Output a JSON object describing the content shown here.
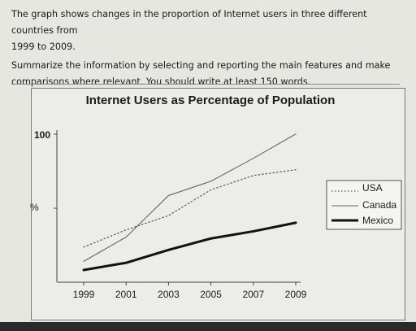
{
  "prompt": {
    "line1": "The graph shows changes in the proportion of Internet users in three different countries from",
    "line2": "1999 to 2009.",
    "line3": "Summarize the information by selecting and reporting the main features and make",
    "line4": "comparisons where relevant. You should write at least 150 words."
  },
  "chart_data": {
    "type": "line",
    "title": "Internet Users as Percentage of Population",
    "ylabel": "%",
    "xlabel": "",
    "x": [
      1999,
      2001,
      2003,
      2005,
      2007,
      2009
    ],
    "x_tick_labels": [
      "1999",
      "2001",
      "2003",
      "2005",
      "2007",
      "2009"
    ],
    "y_tick_labels": [
      "100"
    ],
    "ylim": [
      0,
      100
    ],
    "grid": false,
    "legend_position": "right",
    "series": [
      {
        "name": "USA",
        "style": "dotted",
        "color": "#555555",
        "values": [
          20,
          32,
          42,
          60,
          70,
          74
        ]
      },
      {
        "name": "Canada",
        "style": "solid-thin",
        "color": "#666666",
        "values": [
          10,
          27,
          56,
          66,
          82,
          99
        ]
      },
      {
        "name": "Mexico",
        "style": "solid-thick",
        "color": "#111111",
        "values": [
          4,
          9,
          18,
          26,
          31,
          37
        ]
      }
    ]
  }
}
